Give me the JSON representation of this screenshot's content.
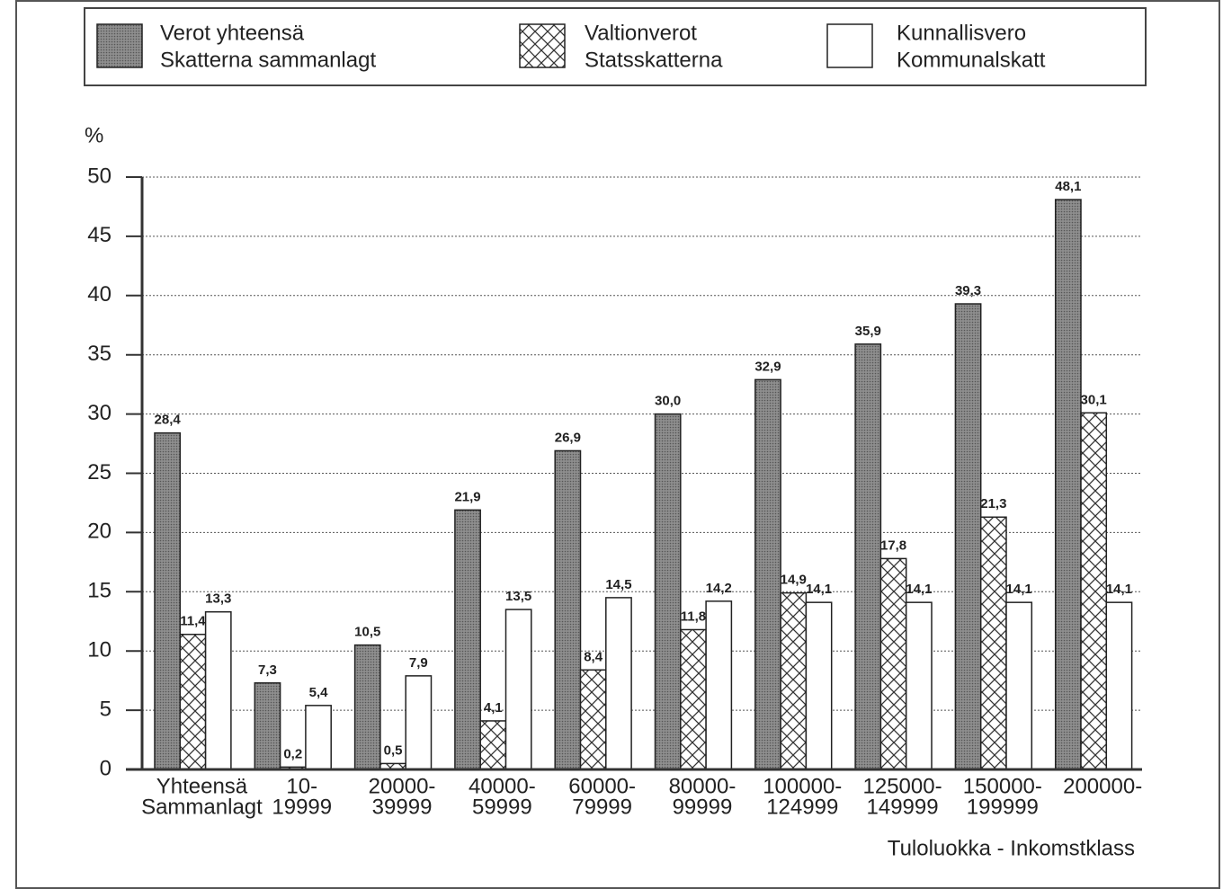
{
  "chart_data": {
    "type": "bar",
    "y_label": "%",
    "x_label": "Tuloluokka - Inkomstklass",
    "categories": [
      [
        "Yhteensä",
        "Sammanlagt"
      ],
      [
        "10-",
        "19999"
      ],
      [
        "20000-",
        "39999"
      ],
      [
        "40000-",
        "59999"
      ],
      [
        "60000-",
        "79999"
      ],
      [
        "80000-",
        "99999"
      ],
      [
        "100000-",
        "124999"
      ],
      [
        "125000-",
        "149999"
      ],
      [
        "150000-",
        "199999"
      ],
      [
        "200000-"
      ]
    ],
    "series": [
      {
        "name": [
          "Verot yhteensä",
          "Skatterna sammanlagt"
        ],
        "color": "#8e8e8e",
        "values": [
          28.4,
          7.3,
          10.5,
          21.9,
          26.9,
          30.0,
          32.9,
          35.9,
          39.3,
          48.1
        ],
        "value_labels": [
          "28,4",
          "7,3",
          "10,5",
          "21,9",
          "26,9",
          "30,0",
          "32,9",
          "35,9",
          "39,3",
          "48,1"
        ]
      },
      {
        "name": [
          "Valtionverot",
          "Statsskatterna"
        ],
        "color": "#ffffff",
        "hatch": "crosshatch",
        "values": [
          11.4,
          0.2,
          0.5,
          4.1,
          8.4,
          11.8,
          14.9,
          17.8,
          21.3,
          30.1
        ],
        "value_labels": [
          "11,4",
          "0,2",
          "0,5",
          "4,1",
          "8,4",
          "11,8",
          "14,9",
          "17,8",
          "21,3",
          "30,1"
        ]
      },
      {
        "name": [
          "Kunnallisvero",
          "Kommunalskatt"
        ],
        "color": "#ffffff",
        "values": [
          13.3,
          5.4,
          7.9,
          13.5,
          14.5,
          14.2,
          14.1,
          14.1,
          14.1,
          14.1
        ],
        "value_labels": [
          "13,3",
          "5,4",
          "7,9",
          "13,5",
          "14,5",
          "14,2",
          "14,1",
          "14,1",
          "14,1",
          "14,1"
        ]
      }
    ],
    "ylim": [
      0,
      50
    ],
    "yticks": [
      0,
      5,
      10,
      15,
      20,
      25,
      30,
      35,
      40,
      45,
      50
    ],
    "grid": true,
    "legend": "top"
  }
}
